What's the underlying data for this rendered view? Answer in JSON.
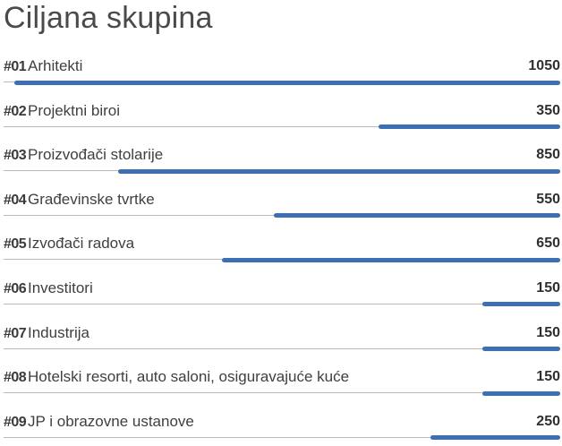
{
  "chart_data": {
    "type": "bar",
    "orientation": "horizontal",
    "title": "Ciljana skupina",
    "xlim": [
      0,
      1050
    ],
    "bar_color": "#3d6fb4",
    "track_color": "#b9b9b9",
    "categories": [
      {
        "num": "#01",
        "label": "Arhitekti",
        "value": 1050
      },
      {
        "num": "#02",
        "label": "Projektni biroi",
        "value": 350
      },
      {
        "num": "#03",
        "label": "Proizvođači stolarije",
        "value": 850
      },
      {
        "num": "#04",
        "label": "Građevinske tvrtke",
        "value": 550
      },
      {
        "num": "#05",
        "label": "Izvođači radova",
        "value": 650
      },
      {
        "num": "#06",
        "label": "Investitori",
        "value": 150
      },
      {
        "num": "#07",
        "label": "Industrija",
        "value": 150
      },
      {
        "num": "#08",
        "label": "Hotelski resorti, auto saloni, osiguravajuće kuće",
        "value": 150
      },
      {
        "num": "#09",
        "label": "JP i obrazovne ustanove",
        "value": 250
      }
    ]
  }
}
